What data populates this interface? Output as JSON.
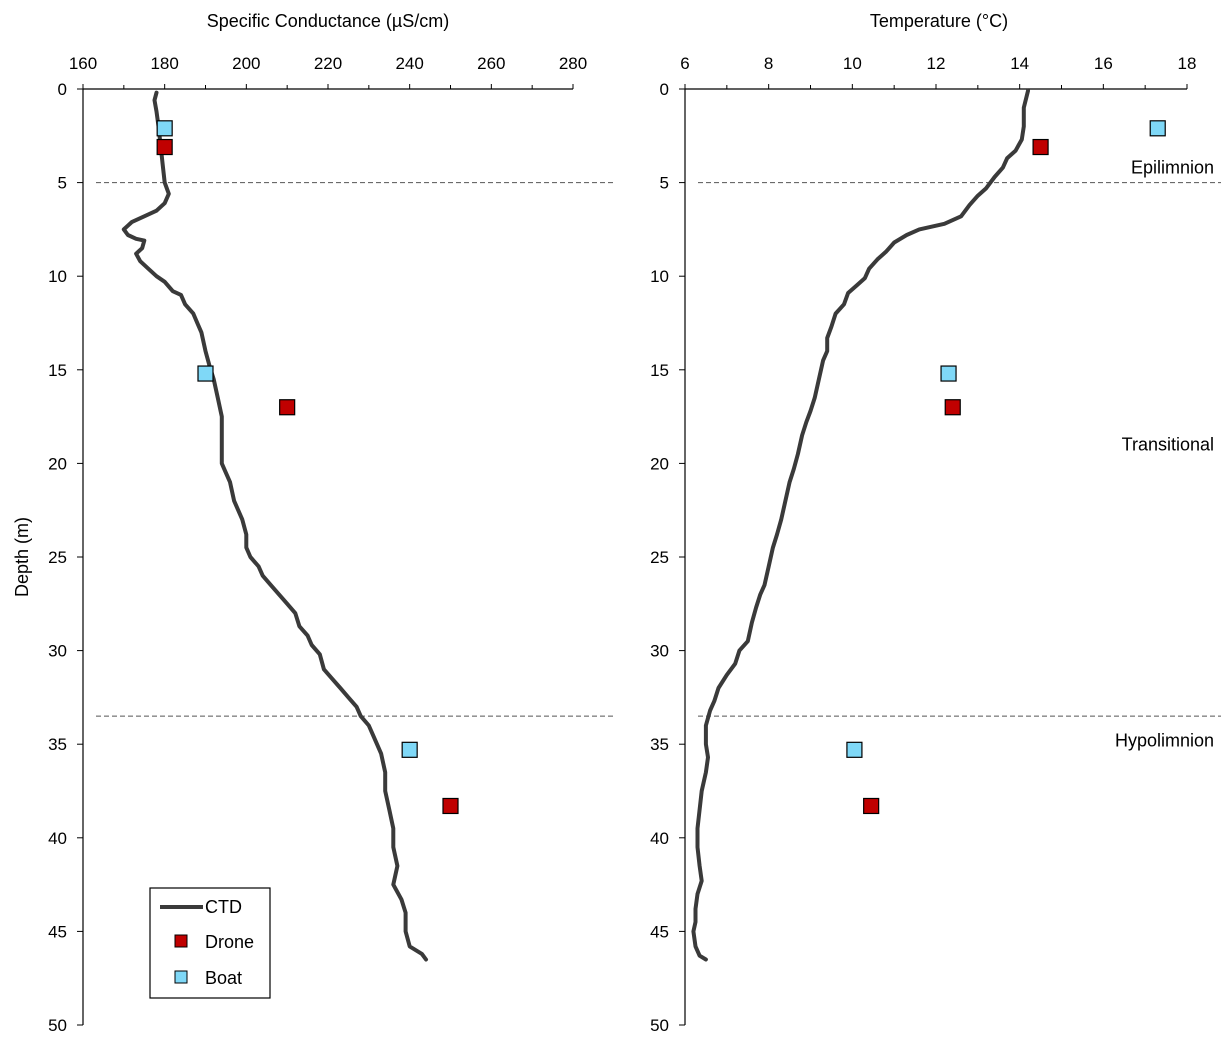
{
  "chart_data": [
    {
      "type": "line",
      "title": "",
      "xlabel": "Specific Conductance (µS/cm)",
      "ylabel": "Depth (m)",
      "xlim": [
        160,
        280
      ],
      "ylim": [
        0,
        50
      ],
      "y_inverted": true,
      "x_axis_position": "top",
      "xticks": [
        160,
        180,
        200,
        220,
        240,
        260,
        280
      ],
      "yticks": [
        0,
        5,
        10,
        15,
        20,
        25,
        30,
        35,
        40,
        45,
        50
      ],
      "grid": false,
      "reference_lines": [
        {
          "axis": "y",
          "value": 5,
          "style": "dashed"
        },
        {
          "axis": "y",
          "value": 33.5,
          "style": "dashed"
        }
      ],
      "series": [
        {
          "name": "CTD",
          "kind": "line",
          "color": "#3a3a3a",
          "points": [
            [
              178,
              0.2
            ],
            [
              177.5,
              0.6
            ],
            [
              178,
              1.2
            ],
            [
              178.5,
              2
            ],
            [
              179,
              3
            ],
            [
              179.5,
              4
            ],
            [
              180,
              5
            ],
            [
              181,
              5.6
            ],
            [
              180,
              6.1
            ],
            [
              178,
              6.5
            ],
            [
              175,
              6.8
            ],
            [
              172,
              7.1
            ],
            [
              170,
              7.5
            ],
            [
              171,
              7.8
            ],
            [
              173,
              8
            ],
            [
              175,
              8.1
            ],
            [
              174.5,
              8.5
            ],
            [
              173,
              8.8
            ],
            [
              174,
              9.2
            ],
            [
              176,
              9.6
            ],
            [
              178,
              10
            ],
            [
              180,
              10.3
            ],
            [
              182,
              10.8
            ],
            [
              184,
              11
            ],
            [
              185,
              11.5
            ],
            [
              187,
              12
            ],
            [
              188,
              12.5
            ],
            [
              189,
              13
            ],
            [
              190,
              14
            ],
            [
              191,
              14.8
            ],
            [
              192,
              15.5
            ],
            [
              193,
              16.5
            ],
            [
              194,
              17.5
            ],
            [
              194,
              18.5
            ],
            [
              194,
              19.3
            ],
            [
              194,
              20
            ],
            [
              195,
              20.5
            ],
            [
              196,
              21
            ],
            [
              197,
              22
            ],
            [
              199,
              23
            ],
            [
              200,
              23.8
            ],
            [
              200,
              24.5
            ],
            [
              201,
              25
            ],
            [
              203,
              25.5
            ],
            [
              204,
              26
            ],
            [
              206,
              26.5
            ],
            [
              208,
              27
            ],
            [
              210,
              27.5
            ],
            [
              212,
              28
            ],
            [
              213,
              28.7
            ],
            [
              215,
              29.2
            ],
            [
              216,
              29.7
            ],
            [
              218,
              30.2
            ],
            [
              219,
              31
            ],
            [
              221,
              31.5
            ],
            [
              223,
              32
            ],
            [
              225,
              32.5
            ],
            [
              227,
              33
            ],
            [
              228,
              33.5
            ],
            [
              230,
              34
            ],
            [
              231,
              34.5
            ],
            [
              232,
              35
            ],
            [
              233,
              35.5
            ],
            [
              234,
              36.5
            ],
            [
              234,
              37.5
            ],
            [
              235,
              38.5
            ],
            [
              236,
              39.5
            ],
            [
              236,
              40.5
            ],
            [
              237,
              41.5
            ],
            [
              236,
              42.5
            ],
            [
              238,
              43.3
            ],
            [
              239,
              44
            ],
            [
              239,
              45
            ],
            [
              240,
              45.8
            ],
            [
              243,
              46.2
            ],
            [
              244,
              46.5
            ]
          ]
        },
        {
          "name": "Drone",
          "kind": "scatter",
          "color": "#c00000",
          "marker": "square",
          "points": [
            [
              180,
              3.1
            ],
            [
              210,
              17
            ],
            [
              250,
              38.3
            ]
          ]
        },
        {
          "name": "Boat",
          "kind": "scatter",
          "color": "#7fd8f7",
          "marker": "square",
          "points": [
            [
              180,
              2.1
            ],
            [
              190,
              15.2
            ],
            [
              240,
              35.3
            ]
          ]
        }
      ],
      "legend": {
        "position": "bottom-left",
        "entries": [
          "CTD",
          "Drone",
          "Boat"
        ]
      }
    },
    {
      "type": "line",
      "title": "",
      "xlabel": "Temperature (°C)",
      "ylabel": "",
      "xlim": [
        6,
        18
      ],
      "ylim": [
        0,
        50
      ],
      "y_inverted": true,
      "x_axis_position": "top",
      "xticks": [
        6,
        8,
        10,
        12,
        14,
        16,
        18
      ],
      "yticks": [
        0,
        5,
        10,
        15,
        20,
        25,
        30,
        35,
        40,
        45,
        50
      ],
      "grid": false,
      "reference_lines": [
        {
          "axis": "y",
          "value": 5,
          "style": "dashed"
        },
        {
          "axis": "y",
          "value": 33.5,
          "style": "dashed"
        }
      ],
      "annotations": [
        {
          "text": "Epilimnion",
          "x": 18,
          "y": 4.2
        },
        {
          "text": "Transitional",
          "x": 18,
          "y": 19
        },
        {
          "text": "Hypolimnion",
          "x": 18,
          "y": 34.8
        }
      ],
      "series": [
        {
          "name": "CTD",
          "kind": "line",
          "color": "#3a3a3a",
          "points": [
            [
              14.2,
              0.1
            ],
            [
              14.1,
              1
            ],
            [
              14.1,
              2
            ],
            [
              14.05,
              2.7
            ],
            [
              13.9,
              3.3
            ],
            [
              13.7,
              3.7
            ],
            [
              13.6,
              4.2
            ],
            [
              13.4,
              4.7
            ],
            [
              13.2,
              5.3
            ],
            [
              13.0,
              5.7
            ],
            [
              12.8,
              6.2
            ],
            [
              12.6,
              6.8
            ],
            [
              12.2,
              7.2
            ],
            [
              11.6,
              7.5
            ],
            [
              11.3,
              7.8
            ],
            [
              11.0,
              8.2
            ],
            [
              10.8,
              8.7
            ],
            [
              10.6,
              9.1
            ],
            [
              10.4,
              9.6
            ],
            [
              10.3,
              10.1
            ],
            [
              10.1,
              10.5
            ],
            [
              9.9,
              10.9
            ],
            [
              9.8,
              11.5
            ],
            [
              9.6,
              12
            ],
            [
              9.5,
              12.7
            ],
            [
              9.4,
              13.3
            ],
            [
              9.4,
              14
            ],
            [
              9.3,
              14.5
            ],
            [
              9.2,
              15.5
            ],
            [
              9.1,
              16.5
            ],
            [
              9.0,
              17.2
            ],
            [
              8.9,
              17.8
            ],
            [
              8.8,
              18.5
            ],
            [
              8.7,
              19.5
            ],
            [
              8.6,
              20.3
            ],
            [
              8.5,
              21
            ],
            [
              8.4,
              22
            ],
            [
              8.3,
              23
            ],
            [
              8.2,
              23.8
            ],
            [
              8.1,
              24.5
            ],
            [
              8.0,
              25.5
            ],
            [
              7.9,
              26.5
            ],
            [
              7.8,
              27
            ],
            [
              7.7,
              27.7
            ],
            [
              7.6,
              28.5
            ],
            [
              7.5,
              29.5
            ],
            [
              7.3,
              30
            ],
            [
              7.2,
              30.7
            ],
            [
              7.0,
              31.3
            ],
            [
              6.8,
              32
            ],
            [
              6.7,
              32.7
            ],
            [
              6.6,
              33.2
            ],
            [
              6.5,
              34
            ],
            [
              6.5,
              35
            ],
            [
              6.55,
              35.7
            ],
            [
              6.5,
              36.5
            ],
            [
              6.4,
              37.5
            ],
            [
              6.35,
              38.5
            ],
            [
              6.3,
              39.5
            ],
            [
              6.3,
              40.5
            ],
            [
              6.35,
              41.5
            ],
            [
              6.4,
              42.3
            ],
            [
              6.3,
              43
            ],
            [
              6.25,
              43.8
            ],
            [
              6.25,
              44.5
            ],
            [
              6.2,
              45
            ],
            [
              6.25,
              45.8
            ],
            [
              6.35,
              46.3
            ],
            [
              6.5,
              46.5
            ]
          ]
        },
        {
          "name": "Drone",
          "kind": "scatter",
          "color": "#c00000",
          "marker": "square",
          "points": [
            [
              14.5,
              3.1
            ],
            [
              12.4,
              17
            ],
            [
              10.45,
              38.3
            ]
          ]
        },
        {
          "name": "Boat",
          "kind": "scatter",
          "color": "#7fd8f7",
          "marker": "square",
          "points": [
            [
              17.3,
              2.1
            ],
            [
              12.3,
              15.2
            ],
            [
              10.05,
              35.3
            ]
          ]
        }
      ]
    }
  ]
}
